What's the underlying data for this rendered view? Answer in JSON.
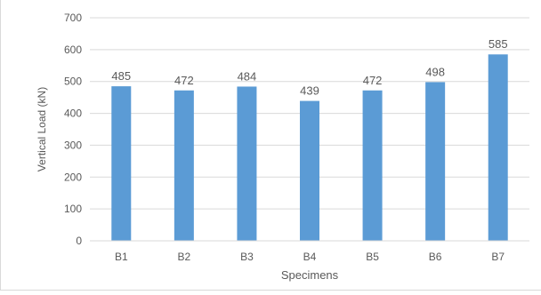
{
  "chart_data": {
    "type": "bar",
    "title": "",
    "xlabel": "Specimens",
    "ylabel": "Vertical Load (kN)",
    "categories": [
      "B1",
      "B2",
      "B3",
      "B4",
      "B5",
      "B6",
      "B7"
    ],
    "values": [
      485,
      472,
      484,
      439,
      472,
      498,
      585
    ],
    "ylim": [
      0,
      700
    ],
    "yticks": [
      0,
      100,
      200,
      300,
      400,
      500,
      600,
      700
    ],
    "grid": true,
    "legend": "none",
    "colors": {
      "bar": "#5b9bd5",
      "grid": "#d9d9d9",
      "text": "#595959"
    }
  }
}
